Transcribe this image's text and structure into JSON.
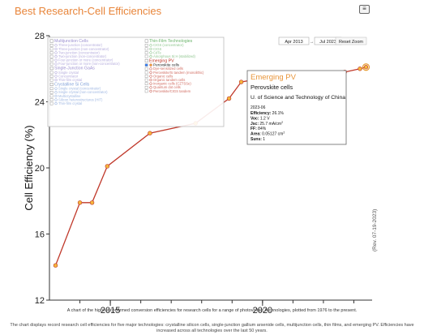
{
  "page": {
    "title": "Best Research-Cell Efficiencies",
    "caption": "A chart of the highest confirmed conversion efficiencies for research cells for a range of photovoltaic technologies, plotted from 1976 to the present.",
    "note": "The chart displays record research cell efficiencies for five major technologies: crystalline silicon cells, single-junction gallium arsenide cells, multijunction cells, thin films, and emerging PV. Efficiencies have increased across all technologies over the last 50 years.",
    "revision": "(Rev. 07-19-2023)",
    "menu_icon": "hamburger-menu-icon"
  },
  "range_controls": {
    "from": "Apr 2013",
    "separator": "→",
    "to": "Jul 2023",
    "reset_label": "Reset Zoom"
  },
  "legend": {
    "groups": [
      {
        "title": "Multijunction Cells",
        "color": "#9b8fd0",
        "items": [
          "Three-junction (concentrator)",
          "Three-junction (non-concentrator)",
          "Two-junction (concentrator)",
          "Two-junction (non-concentrator)",
          "Four-junction or more (concentrator)",
          "Four-junction or more (non-concentrator)"
        ]
      },
      {
        "title": "Single-Junction GaAs",
        "color": "#9b8fd0",
        "items": [
          "Single crystal",
          "Concentrator",
          "Thin-film crystal"
        ]
      },
      {
        "title": "Crystalline Si Cells",
        "color": "#7f9fd8",
        "items": [
          "Single crystal (concentrator)",
          "Single crystal (non-concentrator)",
          "Multicrystalline",
          "Silicon heterostructures (HIT)",
          "Thin-film crystal"
        ]
      },
      {
        "title": "Thin-Film Technologies",
        "color": "#6ab36a",
        "items": [
          "CIGS (concentrator)",
          "CIGS",
          "CdTe",
          "Amorphous Si:H (stabilized)"
        ]
      },
      {
        "title": "Emerging PV",
        "color": "#c0392b",
        "items": [
          "Perovskite cells",
          "Dye-sensitized cells",
          "Perovskite/Si tandem (monolithic)",
          "Organic cells",
          "Organic tandem cells",
          "Inorganic cells (CZTSSe)",
          "Quantum dot cells",
          "Perovskite/CIGS tandem"
        ]
      }
    ]
  },
  "tooltip": {
    "category": "Emerging PV",
    "technology": "Perovskite cells",
    "institution": "U. of Science and Technology of China",
    "date": "2023-06",
    "efficiency_label": "Efficiency:",
    "efficiency_value": "26.1%",
    "voc_label": "Voc:",
    "voc_value": "1.2 V",
    "jsc_label": "Jsc:",
    "jsc_value": "25.7 mA/cm",
    "jsc_sup": "2",
    "ff_label": "FF:",
    "ff_value": "84%",
    "area_label": "Area:",
    "area_value": "0.05127 cm",
    "area_sup": "2",
    "suns_label": "Suns:",
    "suns_value": "1"
  },
  "chart_data": {
    "type": "line",
    "ylabel": "Cell Efficiency (%)",
    "xlabel": "",
    "xlim": [
      2013.0,
      2023.6
    ],
    "ylim": [
      12,
      28
    ],
    "yticks": [
      12,
      16,
      20,
      24,
      28
    ],
    "xticks": [
      2015,
      2020
    ],
    "grid": false,
    "series": [
      {
        "name": "Perovskite cells",
        "color": "#c0392b",
        "marker_color": "#f5b63c",
        "x": [
          2013.2,
          2014.0,
          2014.4,
          2014.9,
          2016.3,
          2017.8,
          2018.9,
          2019.3,
          2020.2,
          2021.1,
          2021.6,
          2022.0,
          2022.7,
          2023.2,
          2023.4
        ],
        "y": [
          14.1,
          17.9,
          17.9,
          20.1,
          22.1,
          22.7,
          24.2,
          25.2,
          25.5,
          25.5,
          25.6,
          25.7,
          25.8,
          26.0,
          26.1
        ]
      }
    ],
    "stray_points": [
      {
        "x": 2019.8,
        "y": 21.6
      }
    ],
    "highlighted_point": {
      "x": 2023.4,
      "y": 26.1
    }
  }
}
